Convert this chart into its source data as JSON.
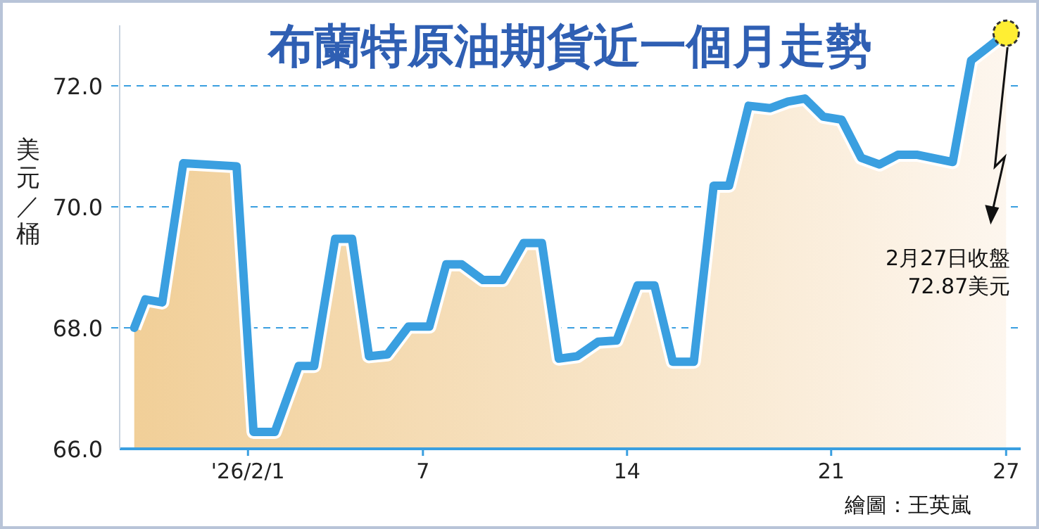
{
  "chart_data": {
    "type": "area",
    "title": "布蘭特原油期貨近一個月走勢",
    "ylabel": "美元／桶",
    "x": [
      -2.9,
      -2.52,
      -1.94,
      -1.22,
      0.61,
      1.19,
      1.92,
      2.74,
      3.27,
      3.99,
      4.57,
      5.15,
      5.78,
      6.5,
      7.22,
      7.8,
      8.33,
      9.06,
      9.73,
      10.45,
      11.08,
      11.66,
      12.29,
      13.01,
      13.64,
      14.36,
      14.94,
      15.57,
      16.29,
      16.97,
      17.5,
      18.17,
      18.9,
      19.52,
      20.1,
      20.73,
      21.36,
      22.03,
      22.66,
      23.29,
      23.96,
      25.17,
      25.8,
      27
    ],
    "series": [
      {
        "color": "#3a9fe0",
        "values": [
          68.0,
          68.47,
          68.42,
          70.72,
          70.67,
          66.28,
          66.28,
          67.37,
          67.37,
          69.47,
          69.47,
          67.53,
          67.56,
          68.02,
          68.02,
          69.05,
          69.05,
          68.79,
          68.79,
          69.4,
          69.4,
          67.49,
          67.53,
          67.77,
          67.79,
          68.7,
          68.7,
          67.44,
          67.44,
          70.35,
          70.35,
          71.67,
          71.63,
          71.74,
          71.79,
          71.49,
          71.44,
          70.81,
          70.7,
          70.86,
          70.86,
          70.74,
          72.42,
          72.87
        ]
      }
    ],
    "xlim": [
      -3.4,
      27.5
    ],
    "xticks": [
      {
        "value": 1,
        "label": "'26/2/1"
      },
      7,
      14,
      21,
      27
    ],
    "ylim": [
      66,
      73
    ],
    "yticks": [
      {
        "value": 66,
        "label": "66.0"
      },
      {
        "value": 68,
        "label": "68.0"
      },
      {
        "value": 70,
        "label": "70.0"
      },
      {
        "value": 72,
        "label": "72.0"
      }
    ],
    "grid": "y",
    "annotations": [
      "2月27日收盤 72.87美元",
      "繪圖：王英嵐"
    ]
  }
}
